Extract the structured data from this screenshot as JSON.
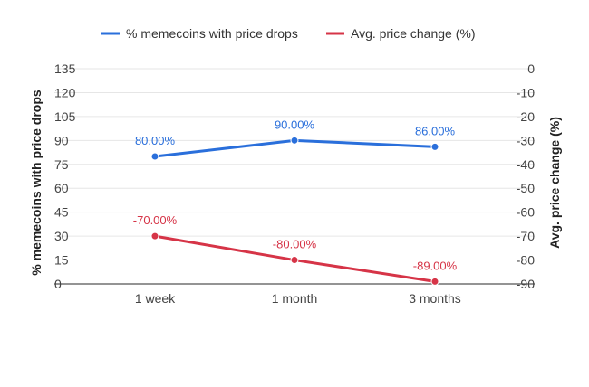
{
  "chart_data": {
    "type": "line",
    "categories": [
      "1 week",
      "1 month",
      "3 months"
    ],
    "series": [
      {
        "name": "% memecoins with price drops",
        "axis": "left",
        "color": "#2a6fdb",
        "values": [
          80,
          90,
          86
        ],
        "labels": [
          "80.00%",
          "90.00%",
          "86.00%"
        ]
      },
      {
        "name": "Avg. price change (%)",
        "axis": "right",
        "color": "#d63447",
        "values": [
          -70,
          -80,
          -89
        ],
        "labels": [
          "-70.00%",
          "-80.00%",
          "-89.00%"
        ]
      }
    ],
    "y_left": {
      "label": "% memecoins with price drops",
      "ylim": [
        0,
        135
      ],
      "ticks": [
        0,
        15,
        30,
        45,
        60,
        75,
        90,
        105,
        120,
        135
      ]
    },
    "y_right": {
      "label": "Avg. price change (%)",
      "ylim": [
        -90,
        0
      ],
      "ticks": [
        0,
        -10,
        -20,
        -30,
        -40,
        -50,
        -60,
        -70,
        -80,
        -90
      ]
    },
    "grid": true,
    "legend_position": "top-center"
  }
}
